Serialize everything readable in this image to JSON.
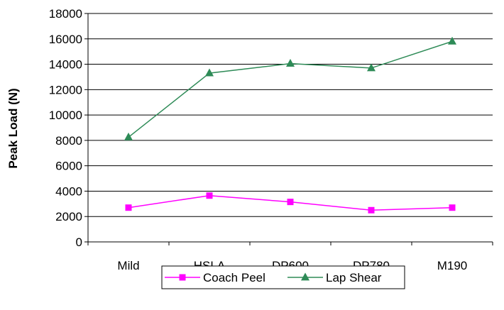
{
  "chart_data": {
    "type": "line",
    "title": "",
    "xlabel": "",
    "ylabel": "Peak Load (N)",
    "categories": [
      "Mild",
      "HSLA",
      "DP600",
      "DP780",
      "M190"
    ],
    "ylim": [
      0,
      18000
    ],
    "yticks": [
      0,
      2000,
      4000,
      6000,
      8000,
      10000,
      12000,
      14000,
      16000,
      18000
    ],
    "grid": "horizontal",
    "legend_position": "bottom",
    "series": [
      {
        "name": "Coach Peel",
        "color": "#ff00ff",
        "marker": "square",
        "values": [
          2700,
          3650,
          3150,
          2500,
          2700
        ]
      },
      {
        "name": "Lap Shear",
        "color": "#2e8b57",
        "marker": "triangle",
        "values": [
          8250,
          13300,
          14050,
          13700,
          15800
        ]
      }
    ]
  }
}
